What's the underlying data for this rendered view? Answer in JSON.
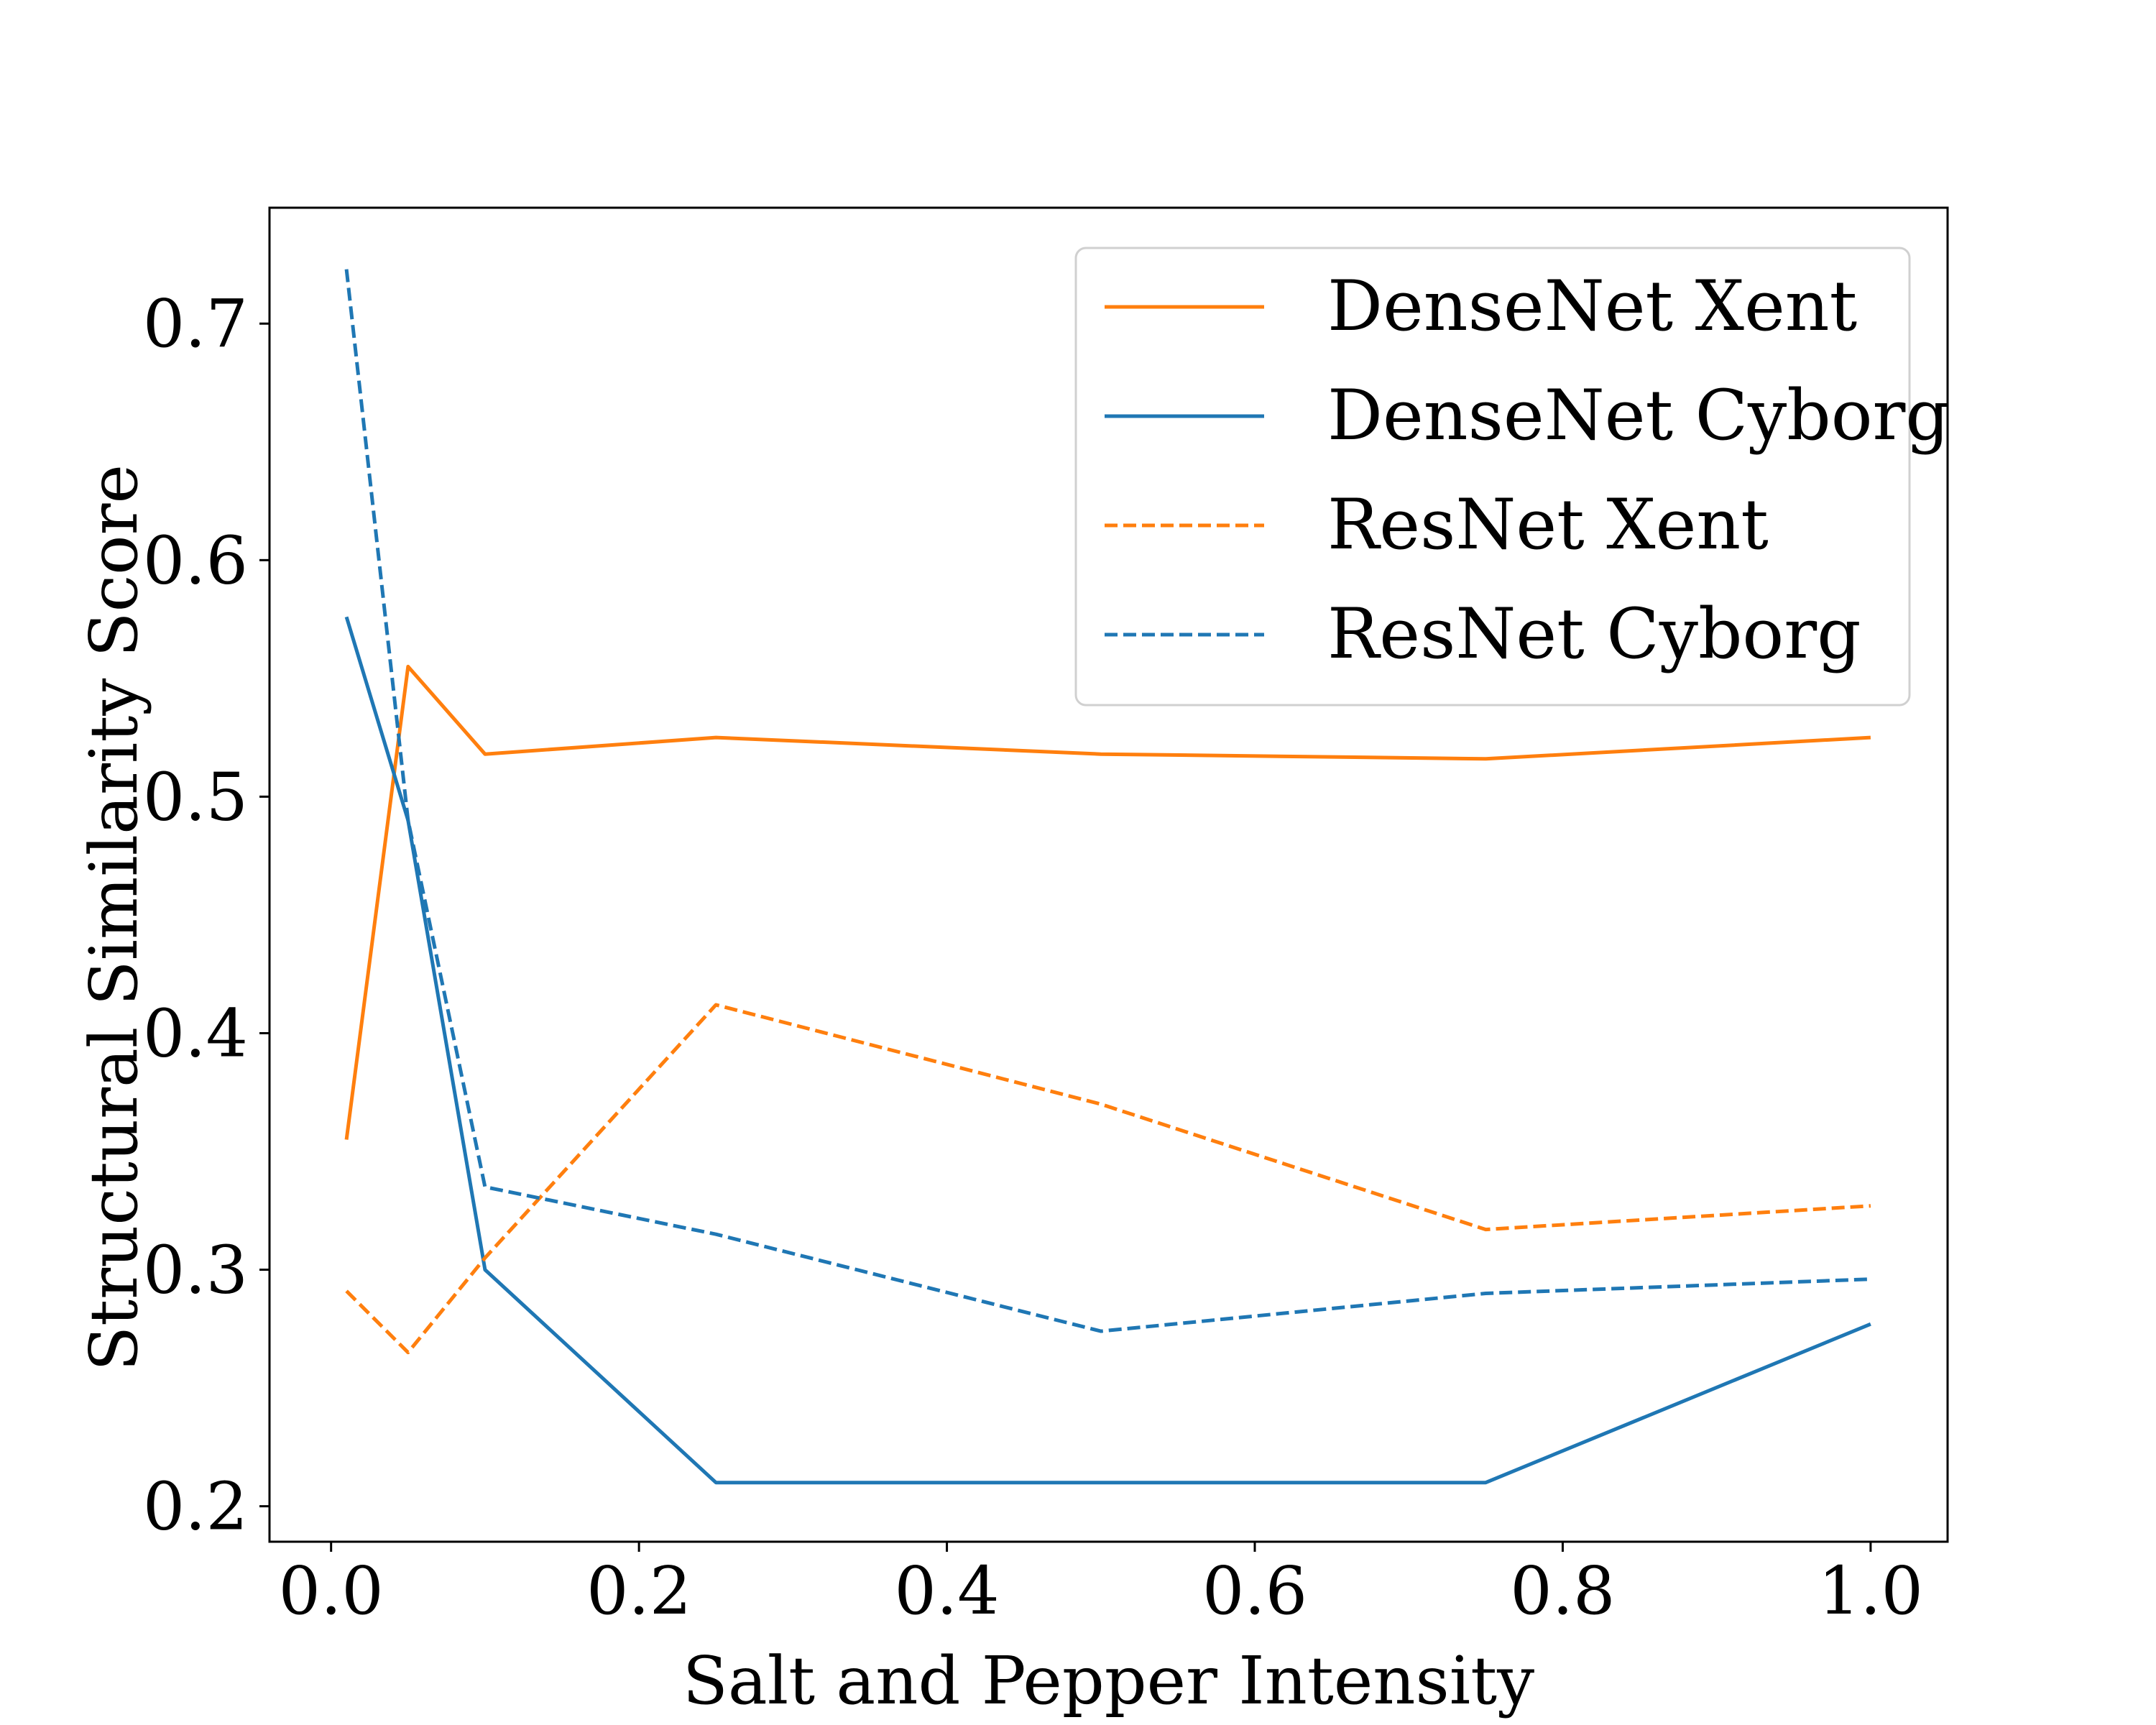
{
  "chart_data": {
    "type": "line",
    "title": "",
    "xlabel": "Salt and Pepper Intensity",
    "ylabel": "Structural Similarity Score",
    "xlim": [
      -0.04,
      1.05
    ],
    "ylim": [
      0.185,
      0.749
    ],
    "xticks": [
      0.0,
      0.2,
      0.4,
      0.6,
      0.8,
      1.0
    ],
    "xtick_labels": [
      "0.0",
      "0.2",
      "0.4",
      "0.6",
      "0.8",
      "1.0"
    ],
    "yticks": [
      0.2,
      0.3,
      0.4,
      0.5,
      0.6,
      0.7
    ],
    "ytick_labels": [
      "0.2",
      "0.3",
      "0.4",
      "0.5",
      "0.6",
      "0.7"
    ],
    "grid": false,
    "legend_position": "top-right",
    "x": [
      0.01,
      0.05,
      0.1,
      0.25,
      0.5,
      0.75,
      1.0
    ],
    "series": [
      {
        "name": "DenseNet Xent",
        "color": "#ff7f0e",
        "dash": "solid",
        "values": [
          0.355,
          0.555,
          0.518,
          0.525,
          0.518,
          0.516,
          0.525
        ]
      },
      {
        "name": "DenseNet Cyborg",
        "color": "#1f77b4",
        "dash": "solid",
        "values": [
          0.576,
          0.49,
          0.3,
          0.21,
          0.21,
          0.21,
          0.277
        ]
      },
      {
        "name": "ResNet Xent",
        "color": "#ff7f0e",
        "dash": "dashed",
        "values": [
          0.291,
          0.265,
          0.305,
          0.412,
          0.37,
          0.317,
          0.327
        ]
      },
      {
        "name": "ResNet Cyborg",
        "color": "#1f77b4",
        "dash": "dashed",
        "values": [
          0.723,
          0.49,
          0.335,
          0.315,
          0.274,
          0.29,
          0.296
        ]
      }
    ]
  }
}
